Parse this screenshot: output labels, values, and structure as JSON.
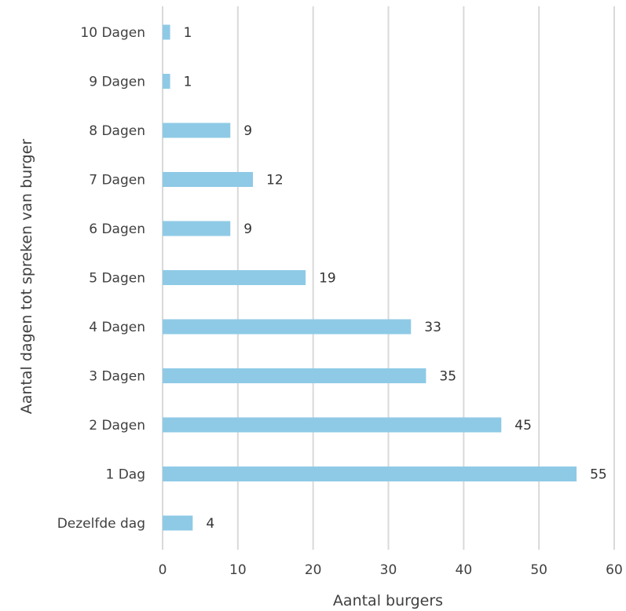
{
  "chart_data": {
    "type": "bar",
    "orientation": "horizontal",
    "categories": [
      "Dezelfde dag",
      "1 Dag",
      "2 Dagen",
      "3 Dagen",
      "4 Dagen",
      "5 Dagen",
      "6 Dagen",
      "7 Dagen",
      "8 Dagen",
      "9 Dagen",
      "10 Dagen"
    ],
    "values": [
      4,
      55,
      45,
      35,
      33,
      19,
      9,
      12,
      9,
      1,
      1
    ],
    "data_labels": [
      "4",
      "55",
      "45",
      "35",
      "33",
      "19",
      "9",
      "12",
      "9",
      "1",
      "1"
    ],
    "xlabel": "Aantal burgers",
    "ylabel": "Aantal dagen tot spreken van burger",
    "xlim": [
      0,
      60
    ],
    "xticks": [
      0,
      10,
      20,
      30,
      40,
      50,
      60
    ],
    "grid": "vertical",
    "bar_color": "#8ecae6"
  }
}
